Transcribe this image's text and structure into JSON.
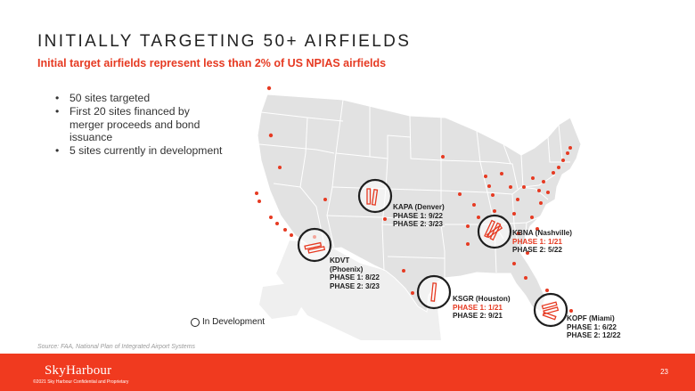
{
  "slide": {
    "title": "INITIALLY TARGETING 50+ AIRFIELDS",
    "subtitle": "Initial target airfields represent less than 2% of US NPIAS airfields",
    "bullets": [
      "50 sites targeted",
      "First 20 sites financed by merger proceeds and bond issuance",
      "5 sites currently in development"
    ],
    "legend_label": "In Development",
    "source": "Source: FAA, National Plan of Integrated Airport Systems",
    "page_number": "23"
  },
  "footer": {
    "logo": "SkyHarbour",
    "copyright": "©2021 Sky Harbour Confidential and Proprietary"
  },
  "callouts": {
    "kapa": {
      "name": "KAPA (Denver)",
      "phase1": "PHASE 1: 9/22",
      "phase2": "PHASE 2: 3/23"
    },
    "kbna": {
      "name": "KBNA (Nashville)",
      "phase1": "PHASE 1: 1/21",
      "phase2": "PHASE 2: 5/22"
    },
    "kdvt": {
      "name_line1": "KDVT",
      "name_line2": "(Phoenix)",
      "phase1": "PHASE 1: 8/22",
      "phase2": "PHASE 2: 3/23"
    },
    "ksgr": {
      "name": "KSGR (Houston)",
      "phase1": "PHASE 1: 1/21",
      "phase2": "PHASE 2: 9/21"
    },
    "kopf": {
      "name": "KOPF (Miami)",
      "phase1": "PHASE 1: 6/22",
      "phase2": "PHASE 2: 12/22"
    }
  },
  "colors": {
    "accent": "#e63a22",
    "footer": "#f03a1f",
    "map_land": "#e2e2e2",
    "map_lines": "#ffffff"
  }
}
